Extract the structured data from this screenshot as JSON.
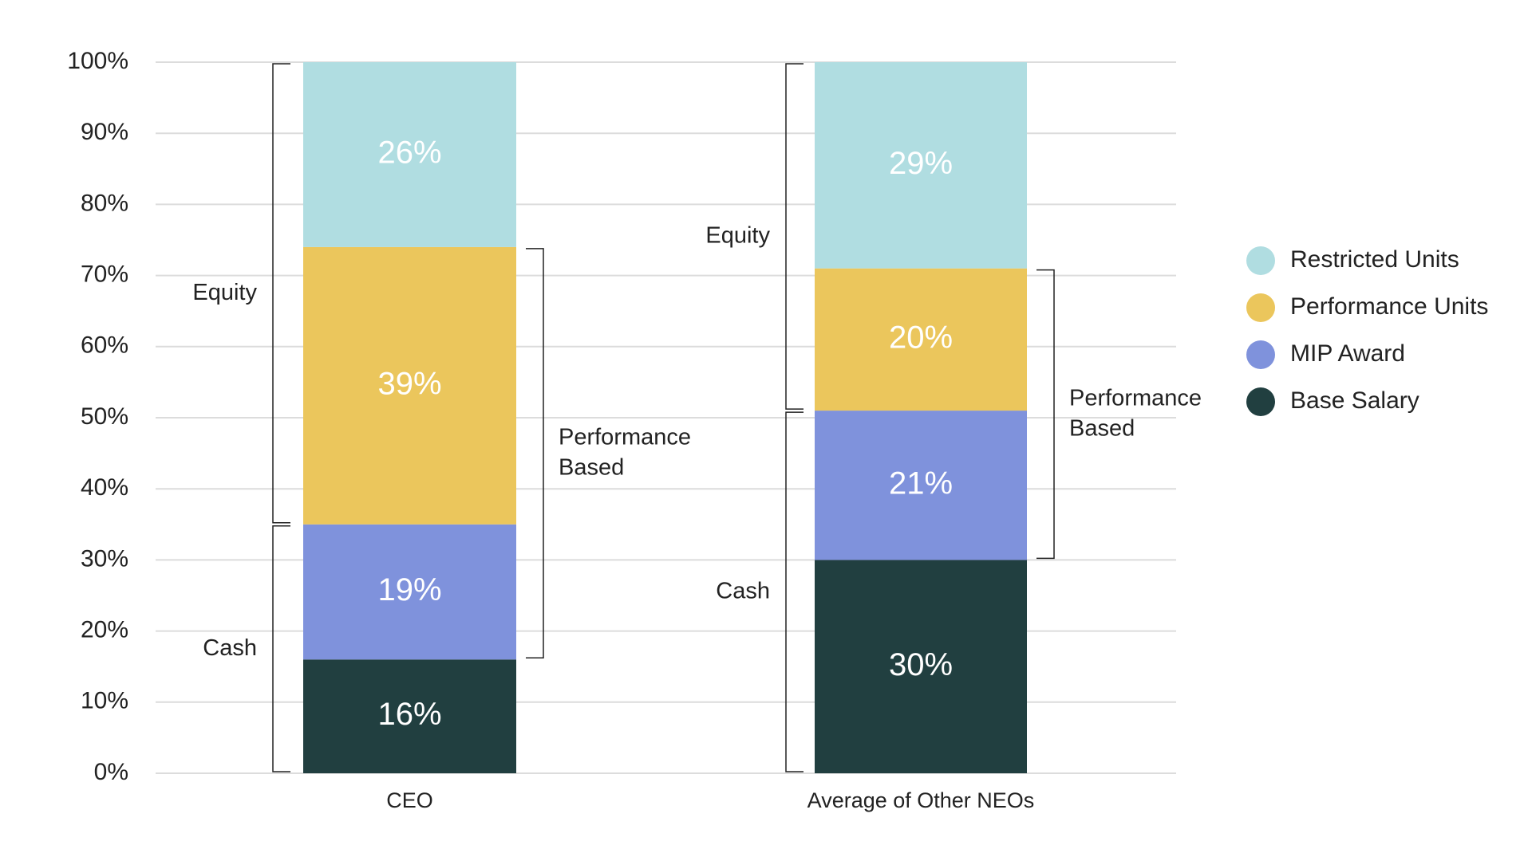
{
  "chart_data": {
    "type": "stacked-bar",
    "categories": [
      "CEO",
      "Average of Other NEOs"
    ],
    "series": [
      {
        "name": "Base Salary",
        "color": "#213f40",
        "values": [
          16,
          30
        ],
        "value_labels": [
          "16%",
          "30%"
        ]
      },
      {
        "name": "MIP Award",
        "color": "#7f92dc",
        "values": [
          19,
          21
        ],
        "value_labels": [
          "19%",
          "21%"
        ]
      },
      {
        "name": "Performance Units",
        "color": "#ebc65c",
        "values": [
          39,
          20
        ],
        "value_labels": [
          "39%",
          "20%"
        ]
      },
      {
        "name": "Restricted Units",
        "color": "#b0dde1",
        "values": [
          26,
          29
        ],
        "value_labels": [
          "26%",
          "29%"
        ]
      }
    ],
    "annotations": [
      [
        "Equity",
        "Cash",
        "Performance Based"
      ],
      [
        "Equity",
        "Cash",
        "Performance Based"
      ]
    ],
    "ylim": [
      0,
      100
    ],
    "yticks": [
      {
        "value": 0,
        "label": "0%"
      },
      {
        "value": 10,
        "label": "10%"
      },
      {
        "value": 20,
        "label": "20%"
      },
      {
        "value": 30,
        "label": "30%"
      },
      {
        "value": 40,
        "label": "40%"
      },
      {
        "value": 50,
        "label": "50%"
      },
      {
        "value": 60,
        "label": "60%"
      },
      {
        "value": 70,
        "label": "70%"
      },
      {
        "value": 80,
        "label": "80%"
      },
      {
        "value": 90,
        "label": "90%"
      },
      {
        "value": 100,
        "label": "100%"
      }
    ],
    "grid": true,
    "legend": "right"
  }
}
